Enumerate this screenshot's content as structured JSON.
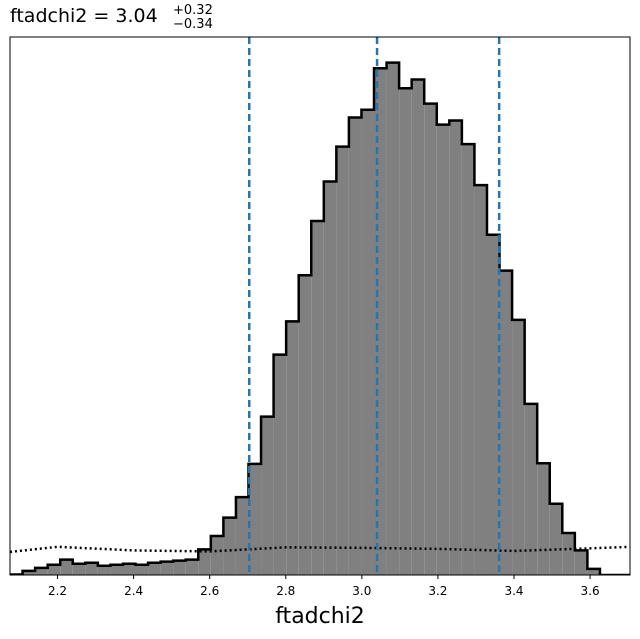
{
  "chart_data": {
    "type": "histogram",
    "title": {
      "name": "ftadchi2",
      "value": "3.04",
      "plus": "+0.32",
      "minus": "−0.34"
    },
    "xlabel": "ftadchi2",
    "xlim": [
      2.075,
      3.705
    ],
    "ylim": [
      0,
      1.05
    ],
    "x_ticks": [
      2.2,
      2.4,
      2.6,
      2.8,
      3.0,
      3.2,
      3.4,
      3.6
    ],
    "x_tick_labels": [
      "2.2",
      "2.4",
      "2.6",
      "2.8",
      "3.0",
      "3.2",
      "3.4",
      "3.6"
    ],
    "y_ticks_shown": false,
    "grid": false,
    "legend": "none",
    "histogram": {
      "fill_color": "#808080",
      "edge_color": "#000000",
      "bin_edges": [
        2.075,
        2.108,
        2.141,
        2.174,
        2.207,
        2.24,
        2.273,
        2.306,
        2.339,
        2.372,
        2.405,
        2.438,
        2.471,
        2.504,
        2.537,
        2.57,
        2.603,
        2.636,
        2.669,
        2.702,
        2.735,
        2.768,
        2.801,
        2.834,
        2.867,
        2.9,
        2.933,
        2.966,
        2.999,
        3.032,
        3.065,
        3.098,
        3.131,
        3.164,
        3.197,
        3.23,
        3.263,
        3.296,
        3.329,
        3.362,
        3.395,
        3.428,
        3.461,
        3.494,
        3.527,
        3.56,
        3.593,
        3.626,
        3.705
      ],
      "counts": [
        0.001,
        0.008,
        0.014,
        0.02,
        0.03,
        0.022,
        0.024,
        0.018,
        0.02,
        0.022,
        0.02,
        0.024,
        0.026,
        0.028,
        0.03,
        0.05,
        0.076,
        0.112,
        0.152,
        0.217,
        0.309,
        0.43,
        0.495,
        0.585,
        0.691,
        0.768,
        0.836,
        0.893,
        0.908,
        0.989,
        1.0,
        0.95,
        0.967,
        0.92,
        0.879,
        0.887,
        0.841,
        0.761,
        0.664,
        0.594,
        0.498,
        0.334,
        0.218,
        0.139,
        0.082,
        0.048,
        0.012,
        0.0
      ]
    },
    "prior_line": {
      "style": "dotted",
      "color": "#000000",
      "x": [
        2.075,
        2.2,
        2.4,
        2.6,
        2.8,
        3.0,
        3.2,
        3.4,
        3.6,
        3.705
      ],
      "y": [
        0.045,
        0.055,
        0.048,
        0.046,
        0.054,
        0.053,
        0.051,
        0.047,
        0.052,
        0.055
      ]
    },
    "quantile_lines": {
      "style": "dashed",
      "color": "#1f77b4",
      "x": [
        2.704,
        3.04,
        3.361
      ]
    }
  }
}
